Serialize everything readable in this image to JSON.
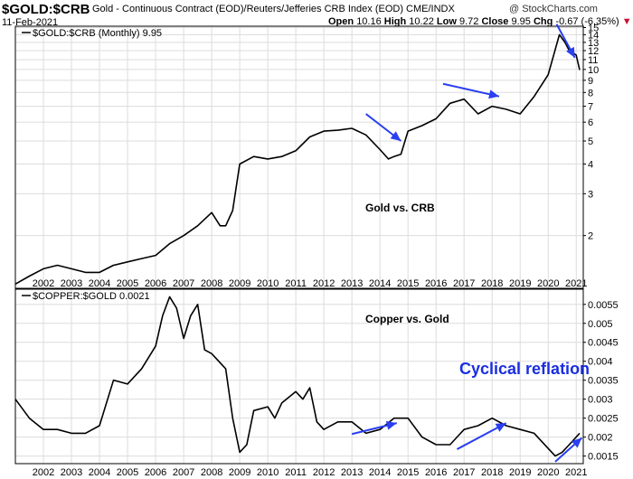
{
  "header": {
    "symbol": "$GOLD:$CRB",
    "description": "Gold - Continuous Contract (EOD)/Reuters/Jefferies CRB Index (EOD) CME/INDX",
    "date": "11-Feb-2021",
    "watermark": "@ StockCharts.com",
    "open_label": "Open",
    "open_value": "10.16",
    "high_label": "High",
    "high_value": "10.22",
    "low_label": "Low",
    "low_value": "9.72",
    "close_label": "Close",
    "close_value": "9.95",
    "chg_label": "Chg",
    "chg_value": "-0.67 (-6.35%)",
    "chg_marker": "▼"
  },
  "colors": {
    "line": "#000000",
    "arrow": "#2a3ff0",
    "annotation": "#1a2ee0",
    "grid": "#dcdcdc"
  },
  "chart_data": [
    {
      "type": "line",
      "legend": "$GOLD:$CRB (Monthly) 9.95",
      "annotation": "Gold vs. CRB",
      "scale": "log",
      "grid": true,
      "x_ticks": [
        "2002",
        "2003",
        "2004",
        "2005",
        "2006",
        "2007",
        "2008",
        "2009",
        "2010",
        "2011",
        "2012",
        "2013",
        "2014",
        "2015",
        "2016",
        "2017",
        "2018",
        "2019",
        "2020",
        "2021"
      ],
      "y_ticks": [
        2,
        3,
        4,
        5,
        6,
        7,
        8,
        9,
        10,
        11,
        12,
        13,
        14,
        15
      ],
      "x": [
        2001.0,
        2001.5,
        2002.0,
        2002.5,
        2003.0,
        2003.5,
        2004.0,
        2004.5,
        2005.0,
        2005.5,
        2006.0,
        2006.5,
        2007.0,
        2007.5,
        2008.0,
        2008.3,
        2008.5,
        2008.75,
        2009.0,
        2009.5,
        2010.0,
        2010.5,
        2011.0,
        2011.5,
        2012.0,
        2012.5,
        2013.0,
        2013.5,
        2014.0,
        2014.3,
        2014.5,
        2014.75,
        2015.0,
        2015.5,
        2016.0,
        2016.5,
        2017.0,
        2017.5,
        2018.0,
        2018.5,
        2019.0,
        2019.5,
        2020.0,
        2020.4,
        2020.6,
        2020.75,
        2021.0,
        2021.12
      ],
      "values": [
        1.25,
        1.35,
        1.45,
        1.5,
        1.45,
        1.4,
        1.4,
        1.5,
        1.55,
        1.6,
        1.65,
        1.85,
        2.0,
        2.2,
        2.5,
        2.2,
        2.2,
        2.55,
        4.0,
        4.3,
        4.2,
        4.3,
        4.55,
        5.2,
        5.5,
        5.55,
        5.65,
        5.3,
        4.6,
        4.2,
        4.3,
        4.4,
        5.5,
        5.8,
        6.2,
        7.2,
        7.5,
        6.5,
        7.0,
        6.8,
        6.5,
        7.7,
        9.5,
        14.0,
        13.0,
        12.0,
        11.5,
        9.95
      ],
      "arrows": [
        {
          "x1": 2013.5,
          "y1": 6.5,
          "x2": 2014.75,
          "y2": 5.0
        },
        {
          "x1": 2016.25,
          "y1": 8.7,
          "x2": 2018.25,
          "y2": 7.7
        },
        {
          "x1": 2020.3,
          "y1": 15.5,
          "x2": 2020.95,
          "y2": 11.2
        }
      ]
    },
    {
      "type": "line",
      "legend": "$COPPER:$GOLD 0.0021",
      "annotation": "Copper vs. Gold",
      "scale": "linear",
      "grid": true,
      "x_ticks": [
        "2002",
        "2003",
        "2004",
        "2005",
        "2006",
        "2007",
        "2008",
        "2009",
        "2010",
        "2011",
        "2012",
        "2013",
        "2014",
        "2015",
        "2016",
        "2017",
        "2018",
        "2019",
        "2020",
        "2021"
      ],
      "y_ticks": [
        0.0015,
        0.002,
        0.0025,
        0.003,
        0.0035,
        0.004,
        0.0045,
        0.005,
        0.0055
      ],
      "x": [
        2001.0,
        2001.5,
        2002.0,
        2002.5,
        2003.0,
        2003.5,
        2004.0,
        2004.5,
        2005.0,
        2005.5,
        2006.0,
        2006.25,
        2006.5,
        2006.75,
        2007.0,
        2007.25,
        2007.5,
        2007.75,
        2008.0,
        2008.5,
        2008.75,
        2009.0,
        2009.25,
        2009.5,
        2010.0,
        2010.25,
        2010.5,
        2011.0,
        2011.25,
        2011.5,
        2011.75,
        2012.0,
        2012.5,
        2013.0,
        2013.5,
        2014.0,
        2014.5,
        2015.0,
        2015.5,
        2016.0,
        2016.5,
        2017.0,
        2017.5,
        2018.0,
        2018.5,
        2019.0,
        2019.5,
        2020.0,
        2020.25,
        2020.5,
        2020.75,
        2021.0,
        2021.12
      ],
      "values": [
        0.003,
        0.0025,
        0.0022,
        0.0022,
        0.0021,
        0.0021,
        0.0023,
        0.0035,
        0.0034,
        0.0038,
        0.0044,
        0.0052,
        0.0057,
        0.0054,
        0.0046,
        0.0052,
        0.0055,
        0.0043,
        0.0042,
        0.0038,
        0.0025,
        0.0016,
        0.0018,
        0.0027,
        0.0028,
        0.0025,
        0.0029,
        0.0032,
        0.003,
        0.0033,
        0.0024,
        0.0022,
        0.0024,
        0.0024,
        0.0021,
        0.0022,
        0.0025,
        0.0025,
        0.002,
        0.0018,
        0.0018,
        0.0022,
        0.0023,
        0.0025,
        0.0023,
        0.0022,
        0.0021,
        0.0017,
        0.0015,
        0.0016,
        0.0018,
        0.002,
        0.0021
      ],
      "arrows": [
        {
          "x1": 2013.0,
          "y1": 0.00208,
          "x2": 2014.6,
          "y2": 0.00237
        },
        {
          "x1": 2016.75,
          "y1": 0.00168,
          "x2": 2018.5,
          "y2": 0.00237
        },
        {
          "x1": 2020.25,
          "y1": 0.00135,
          "x2": 2021.2,
          "y2": 0.00198
        }
      ]
    }
  ],
  "overlay_annotation": "Cyclical reflation"
}
